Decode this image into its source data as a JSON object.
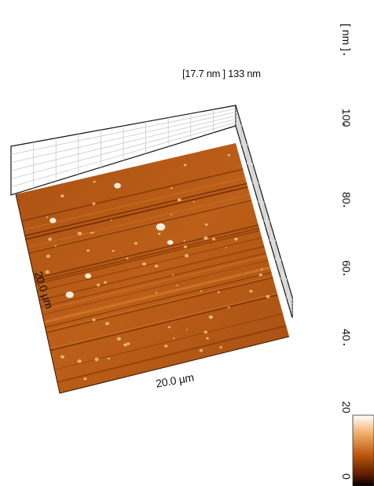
{
  "scan": {
    "z_header": "[17.7 nm ] 133 nm",
    "x_axis_label": "20.0 µm",
    "y_axis_label": "20.0 µm"
  },
  "scale_bar": {
    "unit_label": "[ nm ]",
    "ticks": [
      "100",
      "80",
      "60",
      "40",
      "20",
      "0"
    ]
  },
  "colors": {
    "surface_dark": "#7a2c04",
    "surface_mid": "#b85410",
    "surface_light": "#d9761f",
    "grain": "#fff2d6",
    "grid": "#c8c8c8",
    "frame": "#111111"
  }
}
